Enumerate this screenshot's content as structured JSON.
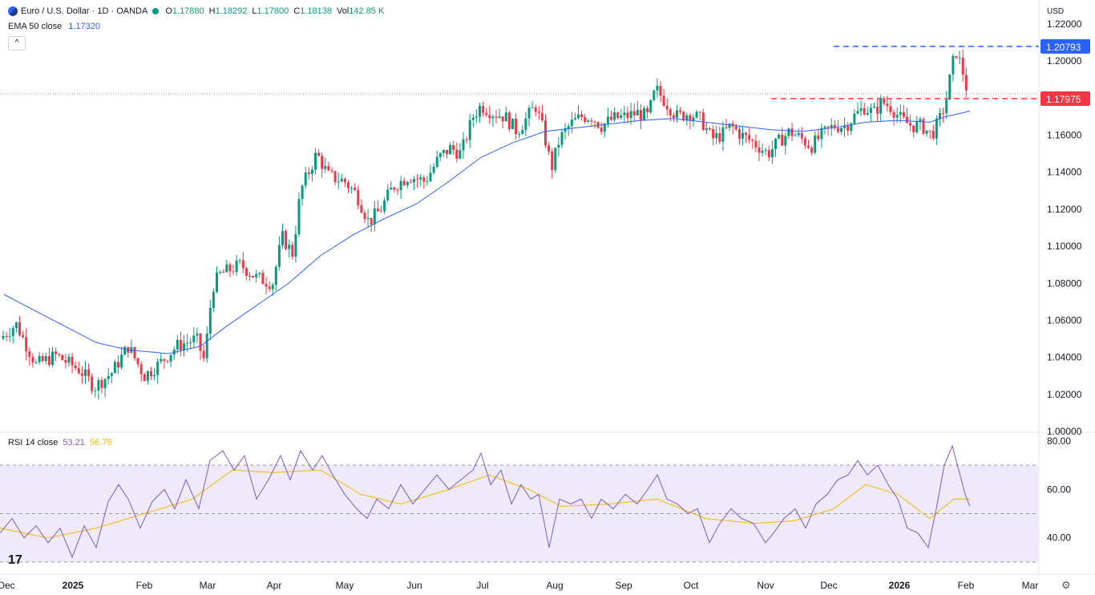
{
  "header": {
    "symbol": "Euro / U.S. Dollar · 1D · OANDA",
    "o_label": "O",
    "o_value": "1.17880",
    "h_label": "H",
    "h_value": "1.18292",
    "l_label": "L",
    "l_value": "1.17800",
    "c_label": "C",
    "c_value": "1.18138",
    "vol_label": "Vol",
    "vol_value": "142.85 K"
  },
  "ema_legend": {
    "label": "EMA 50 close",
    "value": "1.17320",
    "color": "#2962ff"
  },
  "rsi_legend": {
    "label": "RSI 14 close",
    "value": "53.21",
    "ma_value": "56.75",
    "color": "#7e57c2",
    "ma_color": "#f5b700"
  },
  "currency_button": "USD",
  "collapse_icon": "chevron-up-icon",
  "logo_text": "17",
  "colors": {
    "up": "#089981",
    "down": "#f23645",
    "ema": "#2962ff",
    "rsi": "#7e57c2",
    "rsi_ma": "#f5b700",
    "rsi_band": "#efeaf9"
  },
  "chart_data": {
    "type": "candlestick",
    "price_axis": {
      "ticks": [
        "1.22000",
        "1.20000",
        "1.16000",
        "1.14000",
        "1.12000",
        "1.10000",
        "1.08000",
        "1.06000",
        "1.04000",
        "1.02000",
        "1.00000"
      ],
      "ylim": [
        1.0,
        1.22
      ]
    },
    "x_axis": {
      "ticks": [
        "Dec",
        "2025",
        "Feb",
        "Mar",
        "Apr",
        "May",
        "Jun",
        "Jul",
        "Aug",
        "Sep",
        "Oct",
        "Nov",
        "Dec",
        "2026",
        "Feb",
        "Mar"
      ],
      "bold": [
        "2025",
        "2026"
      ]
    },
    "price_labels": [
      {
        "value": "1.20793",
        "price": 1.20793,
        "color": "#2962ff",
        "style": "dashed"
      },
      {
        "value": "1.17975",
        "price": 1.17975,
        "color": "#f23645",
        "style": "dashed"
      }
    ],
    "close_path": [
      [
        0,
        1.05
      ],
      [
        20,
        1.058
      ],
      [
        45,
        1.036
      ],
      [
        70,
        1.041
      ],
      [
        100,
        1.033
      ],
      [
        118,
        1.024
      ],
      [
        140,
        1.032
      ],
      [
        160,
        1.046
      ],
      [
        180,
        1.03
      ],
      [
        200,
        1.037
      ],
      [
        220,
        1.046
      ],
      [
        245,
        1.05
      ],
      [
        255,
        1.038
      ],
      [
        265,
        1.078
      ],
      [
        275,
        1.085
      ],
      [
        300,
        1.09
      ],
      [
        320,
        1.083
      ],
      [
        340,
        1.08
      ],
      [
        352,
        1.105
      ],
      [
        365,
        1.096
      ],
      [
        375,
        1.13
      ],
      [
        395,
        1.15
      ],
      [
        410,
        1.138
      ],
      [
        430,
        1.135
      ],
      [
        445,
        1.128
      ],
      [
        460,
        1.113
      ],
      [
        475,
        1.12
      ],
      [
        490,
        1.132
      ],
      [
        510,
        1.138
      ],
      [
        530,
        1.135
      ],
      [
        548,
        1.148
      ],
      [
        562,
        1.153
      ],
      [
        575,
        1.15
      ],
      [
        590,
        1.17
      ],
      [
        600,
        1.176
      ],
      [
        615,
        1.172
      ],
      [
        630,
        1.17
      ],
      [
        645,
        1.162
      ],
      [
        655,
        1.168
      ],
      [
        668,
        1.176
      ],
      [
        678,
        1.162
      ],
      [
        688,
        1.142
      ],
      [
        698,
        1.158
      ],
      [
        712,
        1.166
      ],
      [
        725,
        1.17
      ],
      [
        738,
        1.17
      ],
      [
        750,
        1.165
      ],
      [
        765,
        1.169
      ],
      [
        780,
        1.17
      ],
      [
        795,
        1.172
      ],
      [
        808,
        1.17
      ],
      [
        818,
        1.185
      ],
      [
        830,
        1.178
      ],
      [
        845,
        1.17
      ],
      [
        860,
        1.172
      ],
      [
        875,
        1.168
      ],
      [
        888,
        1.158
      ],
      [
        900,
        1.16
      ],
      [
        912,
        1.165
      ],
      [
        925,
        1.16
      ],
      [
        940,
        1.156
      ],
      [
        958,
        1.15
      ],
      [
        968,
        1.155
      ],
      [
        985,
        1.162
      ],
      [
        1000,
        1.158
      ],
      [
        1012,
        1.154
      ],
      [
        1025,
        1.16
      ],
      [
        1040,
        1.165
      ],
      [
        1055,
        1.165
      ],
      [
        1065,
        1.17
      ],
      [
        1078,
        1.175
      ],
      [
        1090,
        1.172
      ],
      [
        1100,
        1.178
      ],
      [
        1112,
        1.175
      ],
      [
        1125,
        1.168
      ],
      [
        1138,
        1.165
      ],
      [
        1150,
        1.165
      ],
      [
        1162,
        1.16
      ],
      [
        1172,
        1.168
      ],
      [
        1180,
        1.178
      ],
      [
        1188,
        1.198
      ],
      [
        1193,
        1.205
      ],
      [
        1200,
        1.196
      ],
      [
        1208,
        1.181
      ]
    ],
    "ema_path": [
      [
        5,
        1.074
      ],
      [
        40,
        1.066
      ],
      [
        80,
        1.057
      ],
      [
        120,
        1.048
      ],
      [
        160,
        1.044
      ],
      [
        210,
        1.042
      ],
      [
        250,
        1.046
      ],
      [
        280,
        1.056
      ],
      [
        320,
        1.068
      ],
      [
        360,
        1.08
      ],
      [
        400,
        1.095
      ],
      [
        440,
        1.106
      ],
      [
        480,
        1.115
      ],
      [
        520,
        1.123
      ],
      [
        560,
        1.135
      ],
      [
        600,
        1.148
      ],
      [
        640,
        1.156
      ],
      [
        680,
        1.162
      ],
      [
        720,
        1.164
      ],
      [
        760,
        1.166
      ],
      [
        800,
        1.168
      ],
      [
        840,
        1.169
      ],
      [
        880,
        1.167
      ],
      [
        920,
        1.165
      ],
      [
        960,
        1.163
      ],
      [
        1000,
        1.162
      ],
      [
        1040,
        1.164
      ],
      [
        1080,
        1.167
      ],
      [
        1120,
        1.168
      ],
      [
        1160,
        1.167
      ],
      [
        1180,
        1.17
      ],
      [
        1210,
        1.173
      ]
    ],
    "rsi": {
      "axis_ticks": [
        "80.00",
        "60.00",
        "40.00"
      ],
      "ylim": [
        25,
        80
      ],
      "bands": [
        70,
        50,
        30
      ],
      "path": [
        [
          0,
          42
        ],
        [
          15,
          48
        ],
        [
          30,
          40
        ],
        [
          45,
          45
        ],
        [
          60,
          38
        ],
        [
          75,
          44
        ],
        [
          90,
          32
        ],
        [
          105,
          45
        ],
        [
          120,
          36
        ],
        [
          135,
          55
        ],
        [
          148,
          62
        ],
        [
          160,
          56
        ],
        [
          175,
          44
        ],
        [
          190,
          55
        ],
        [
          205,
          60
        ],
        [
          218,
          52
        ],
        [
          232,
          64
        ],
        [
          248,
          52
        ],
        [
          262,
          72
        ],
        [
          278,
          76
        ],
        [
          292,
          68
        ],
        [
          305,
          74
        ],
        [
          320,
          56
        ],
        [
          335,
          64
        ],
        [
          350,
          74
        ],
        [
          362,
          64
        ],
        [
          375,
          76
        ],
        [
          390,
          68
        ],
        [
          402,
          74
        ],
        [
          415,
          66
        ],
        [
          430,
          58
        ],
        [
          445,
          52
        ],
        [
          458,
          48
        ],
        [
          470,
          56
        ],
        [
          485,
          52
        ],
        [
          500,
          62
        ],
        [
          515,
          54
        ],
        [
          530,
          60
        ],
        [
          545,
          66
        ],
        [
          560,
          60
        ],
        [
          575,
          64
        ],
        [
          590,
          68
        ],
        [
          600,
          75
        ],
        [
          612,
          62
        ],
        [
          625,
          68
        ],
        [
          638,
          54
        ],
        [
          650,
          62
        ],
        [
          662,
          56
        ],
        [
          672,
          58
        ],
        [
          685,
          36
        ],
        [
          698,
          56
        ],
        [
          712,
          54
        ],
        [
          725,
          56
        ],
        [
          738,
          48
        ],
        [
          750,
          56
        ],
        [
          765,
          52
        ],
        [
          780,
          58
        ],
        [
          795,
          54
        ],
        [
          808,
          60
        ],
        [
          820,
          66
        ],
        [
          832,
          56
        ],
        [
          845,
          54
        ],
        [
          858,
          50
        ],
        [
          870,
          52
        ],
        [
          885,
          38
        ],
        [
          898,
          46
        ],
        [
          912,
          52
        ],
        [
          925,
          48
        ],
        [
          940,
          46
        ],
        [
          955,
          38
        ],
        [
          965,
          42
        ],
        [
          978,
          48
        ],
        [
          992,
          52
        ],
        [
          1005,
          44
        ],
        [
          1018,
          54
        ],
        [
          1032,
          58
        ],
        [
          1045,
          64
        ],
        [
          1058,
          66
        ],
        [
          1070,
          72
        ],
        [
          1082,
          66
        ],
        [
          1095,
          70
        ],
        [
          1108,
          62
        ],
        [
          1120,
          56
        ],
        [
          1132,
          44
        ],
        [
          1145,
          42
        ],
        [
          1158,
          36
        ],
        [
          1168,
          52
        ],
        [
          1178,
          70
        ],
        [
          1188,
          78
        ],
        [
          1196,
          68
        ],
        [
          1204,
          58
        ],
        [
          1210,
          53
        ]
      ],
      "ma_path": [
        [
          0,
          44
        ],
        [
          60,
          40
        ],
        [
          120,
          44
        ],
        [
          180,
          50
        ],
        [
          240,
          56
        ],
        [
          290,
          68
        ],
        [
          340,
          67
        ],
        [
          400,
          68
        ],
        [
          450,
          58
        ],
        [
          500,
          54
        ],
        [
          560,
          60
        ],
        [
          610,
          66
        ],
        [
          660,
          60
        ],
        [
          700,
          53
        ],
        [
          760,
          54
        ],
        [
          820,
          56
        ],
        [
          880,
          48
        ],
        [
          940,
          46
        ],
        [
          990,
          47
        ],
        [
          1040,
          52
        ],
        [
          1080,
          62
        ],
        [
          1120,
          58
        ],
        [
          1160,
          48
        ],
        [
          1190,
          56
        ],
        [
          1210,
          56
        ]
      ]
    }
  }
}
